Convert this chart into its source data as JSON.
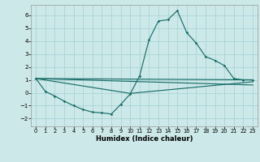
{
  "xlabel": "Humidex (Indice chaleur)",
  "bg_color": "#cce8e8",
  "line_color": "#1a6e6a",
  "grid_color": "#aad4d4",
  "xlim": [
    -0.5,
    23.5
  ],
  "ylim": [
    -2.6,
    6.8
  ],
  "xticks": [
    0,
    1,
    2,
    3,
    4,
    5,
    6,
    7,
    8,
    9,
    10,
    11,
    12,
    13,
    14,
    15,
    16,
    17,
    18,
    19,
    20,
    21,
    22,
    23
  ],
  "yticks": [
    -2,
    -1,
    0,
    1,
    2,
    3,
    4,
    5,
    6
  ],
  "line1_x": [
    0,
    1,
    2,
    3,
    4,
    5,
    6,
    7,
    8,
    9,
    10,
    11,
    12,
    13,
    14,
    15,
    16,
    17,
    18,
    19,
    20,
    21,
    22,
    23
  ],
  "line1_y": [
    1.1,
    0.1,
    -0.25,
    -0.65,
    -1.0,
    -1.3,
    -1.5,
    -1.55,
    -1.65,
    -0.9,
    -0.1,
    1.3,
    4.1,
    5.55,
    5.65,
    6.35,
    4.65,
    3.85,
    2.8,
    2.5,
    2.1,
    1.1,
    1.0,
    1.0
  ],
  "line2_x": [
    0,
    23
  ],
  "line2_y": [
    1.1,
    1.0
  ],
  "line3_x": [
    0,
    10,
    23
  ],
  "line3_y": [
    1.1,
    -0.05,
    0.85
  ],
  "line4_x": [
    0,
    23
  ],
  "line4_y": [
    1.1,
    0.6
  ]
}
